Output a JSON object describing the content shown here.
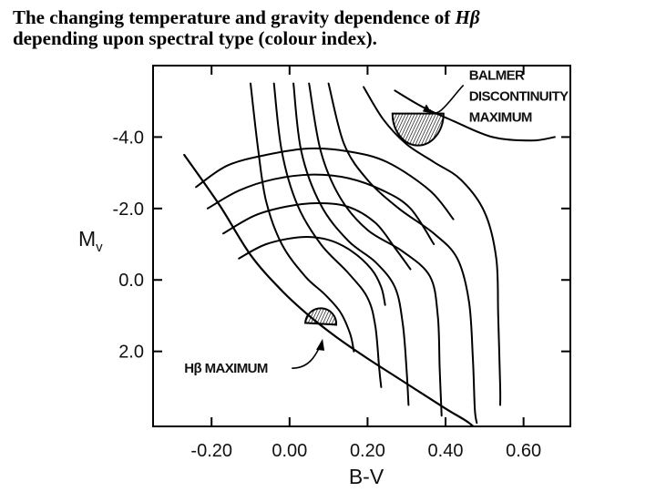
{
  "title": {
    "line1": "The changing temperature and gravity dependence of",
    "line1_symbol": "Hβ",
    "line2": "depending upon spectral type (colour index)."
  },
  "chart_data": {
    "type": "line",
    "title": "The changing temperature and gravity dependence of Hβ depending upon spectral type (colour index).",
    "xlabel": "B-V",
    "ylabel": "Mv",
    "ylabel_main": "M",
    "ylabel_sub": "v",
    "xlim": [
      -0.35,
      0.72
    ],
    "ylim": [
      -6.0,
      4.1
    ],
    "y_inverted": true,
    "x_ticks": [
      {
        "value": -0.2,
        "label": "-0.20"
      },
      {
        "value": 0.0,
        "label": "0.00"
      },
      {
        "value": 0.2,
        "label": "0.20"
      },
      {
        "value": 0.4,
        "label": "0.40"
      },
      {
        "value": 0.6,
        "label": "0.60"
      }
    ],
    "y_ticks": [
      {
        "value": -4.0,
        "label": "-4.0"
      },
      {
        "value": -2.0,
        "label": "-2.0"
      },
      {
        "value": 0.0,
        "label": "0.0"
      },
      {
        "value": 2.0,
        "label": "2.0"
      }
    ],
    "grid": false,
    "series": [
      {
        "id": "main-sequence-boundary",
        "points": [
          [
            -0.27,
            -3.5
          ],
          [
            -0.18,
            -2.1
          ],
          [
            -0.1,
            -0.7
          ],
          [
            -0.02,
            0.3
          ],
          [
            0.05,
            1.0
          ],
          [
            0.12,
            1.6
          ],
          [
            0.2,
            2.2
          ],
          [
            0.3,
            2.9
          ],
          [
            0.4,
            3.6
          ],
          [
            0.46,
            4.0
          ],
          [
            0.5,
            4.4
          ]
        ]
      },
      {
        "id": "contour-1",
        "points": [
          [
            -0.1,
            -5.5
          ],
          [
            -0.08,
            -3.6
          ],
          [
            -0.06,
            -2.2
          ],
          [
            -0.02,
            -1.0
          ],
          [
            0.04,
            -0.1
          ],
          [
            0.09,
            0.4
          ],
          [
            0.13,
            0.9
          ],
          [
            0.155,
            1.5
          ],
          [
            0.165,
            2.0
          ]
        ]
      },
      {
        "id": "contour-2",
        "points": [
          [
            -0.04,
            -5.5
          ],
          [
            -0.02,
            -3.6
          ],
          [
            0.02,
            -2.1
          ],
          [
            0.08,
            -1.0
          ],
          [
            0.15,
            -0.2
          ],
          [
            0.2,
            0.5
          ],
          [
            0.22,
            1.3
          ],
          [
            0.23,
            2.5
          ],
          [
            0.235,
            3.0
          ]
        ]
      },
      {
        "id": "contour-3",
        "points": [
          [
            0.01,
            -5.5
          ],
          [
            0.03,
            -3.6
          ],
          [
            0.08,
            -2.1
          ],
          [
            0.15,
            -1.1
          ],
          [
            0.22,
            -0.5
          ],
          [
            0.27,
            0.2
          ],
          [
            0.29,
            1.2
          ],
          [
            0.3,
            2.5
          ],
          [
            0.305,
            3.5
          ]
        ]
      },
      {
        "id": "contour-4",
        "points": [
          [
            0.05,
            -5.5
          ],
          [
            0.08,
            -3.6
          ],
          [
            0.13,
            -2.3
          ],
          [
            0.2,
            -1.4
          ],
          [
            0.29,
            -0.8
          ],
          [
            0.36,
            -0.1
          ],
          [
            0.38,
            1.0
          ],
          [
            0.385,
            2.5
          ],
          [
            0.39,
            3.8
          ]
        ]
      },
      {
        "id": "contour-5",
        "points": [
          [
            0.1,
            -5.5
          ],
          [
            0.14,
            -3.8
          ],
          [
            0.2,
            -2.8
          ],
          [
            0.28,
            -2.0
          ],
          [
            0.37,
            -1.3
          ],
          [
            0.43,
            -0.6
          ],
          [
            0.46,
            0.6
          ],
          [
            0.47,
            2.2
          ],
          [
            0.475,
            3.6
          ],
          [
            0.48,
            4.0
          ]
        ]
      },
      {
        "id": "contour-6",
        "points": [
          [
            0.19,
            -5.4
          ],
          [
            0.24,
            -4.5
          ],
          [
            0.3,
            -3.8
          ],
          [
            0.37,
            -3.3
          ],
          [
            0.44,
            -2.8
          ],
          [
            0.5,
            -1.9
          ],
          [
            0.53,
            -0.6
          ],
          [
            0.535,
            1.0
          ],
          [
            0.54,
            3.0
          ],
          [
            0.54,
            3.5
          ]
        ]
      },
      {
        "id": "contour-7",
        "points": [
          [
            0.27,
            -5.3
          ],
          [
            0.34,
            -4.85
          ],
          [
            0.42,
            -4.45
          ],
          [
            0.52,
            -4.0
          ],
          [
            0.62,
            -3.9
          ],
          [
            0.68,
            -4.0
          ]
        ]
      },
      {
        "id": "band-1",
        "points": [
          [
            -0.24,
            -2.6
          ],
          [
            -0.16,
            -3.2
          ],
          [
            -0.06,
            -3.5
          ],
          [
            0.05,
            -3.68
          ],
          [
            0.15,
            -3.6
          ],
          [
            0.25,
            -3.3
          ],
          [
            0.36,
            -2.5
          ],
          [
            0.42,
            -1.7
          ]
        ]
      },
      {
        "id": "band-2",
        "points": [
          [
            -0.21,
            -2.0
          ],
          [
            -0.13,
            -2.5
          ],
          [
            -0.04,
            -2.82
          ],
          [
            0.06,
            -2.95
          ],
          [
            0.15,
            -2.85
          ],
          [
            0.24,
            -2.5
          ],
          [
            0.31,
            -2.0
          ],
          [
            0.37,
            -1.0
          ]
        ]
      },
      {
        "id": "band-3",
        "points": [
          [
            -0.17,
            -1.3
          ],
          [
            -0.09,
            -1.8
          ],
          [
            -0.01,
            -2.05
          ],
          [
            0.07,
            -2.15
          ],
          [
            0.15,
            -2.05
          ],
          [
            0.22,
            -1.6
          ],
          [
            0.27,
            -0.9
          ],
          [
            0.31,
            -0.3
          ]
        ]
      },
      {
        "id": "band-4",
        "points": [
          [
            -0.13,
            -0.6
          ],
          [
            -0.06,
            -1.0
          ],
          [
            0.03,
            -1.2
          ],
          [
            0.1,
            -1.12
          ],
          [
            0.16,
            -0.8
          ],
          [
            0.21,
            -0.3
          ],
          [
            0.235,
            0.2
          ],
          [
            0.245,
            0.7
          ]
        ]
      }
    ],
    "regions": [
      {
        "id": "balmer-discontinuity-maximum",
        "label": "BALMER DISCONTINUITY MAXIMUM",
        "center": [
          0.32,
          -4.3
        ],
        "shape": "hatched-half-disc"
      },
      {
        "id": "h-beta-maximum",
        "label": "Hβ MAXIMUM",
        "center": [
          0.08,
          1.05
        ],
        "shape": "hatched-half-disc"
      }
    ],
    "annotations": [
      {
        "id": "balmer-discontinuity-maximum",
        "lines": [
          "BALMER",
          "DISCONTINUITY",
          "MAXIMUM"
        ],
        "anchor": [
          0.36,
          -3.9
        ],
        "text_at": [
          0.46,
          -5.3
        ]
      },
      {
        "id": "h-beta-maximum",
        "text": "Hβ MAXIMUM",
        "anchor": [
          0.08,
          1.8
        ],
        "text_at": [
          -0.27,
          2.6
        ]
      }
    ]
  }
}
